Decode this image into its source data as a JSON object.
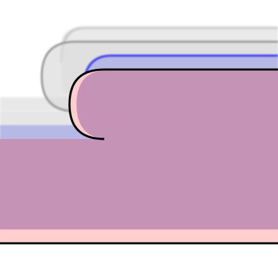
{
  "colors": {
    "background": "#ffffff",
    "ghost_fill": "#e6e6e6",
    "ghost_stroke": "#9c9c9c",
    "blue_fill": "#b3b5e6",
    "blue_stroke": "#3b3bf0",
    "pink_fill": "#ffcccc",
    "mauve_fill": "#c28fb3",
    "main_stroke": "#000000"
  },
  "layers": [
    {
      "id": "ghost-far",
      "kind": "translucent-outline"
    },
    {
      "id": "ghost-near",
      "kind": "translucent-outline"
    },
    {
      "id": "blue",
      "kind": "colored-outline"
    },
    {
      "id": "pink",
      "kind": "colored-outline"
    },
    {
      "id": "main",
      "kind": "solid-outline"
    }
  ]
}
